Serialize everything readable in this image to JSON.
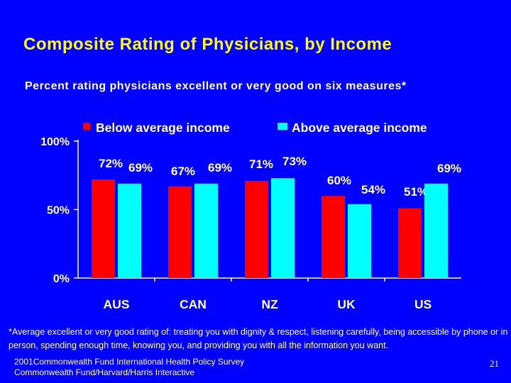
{
  "slide": {
    "title": "Composite Rating of Physicians, by Income",
    "subtitle": "Percent rating physicians excellent or very good on six measures*",
    "footnote": "*Average excellent or very good rating of:  treating you with dignity & respect, listening carefully, being accessible by phone or in person, spending enough time, knowing you, and providing you with all the information you want.",
    "source_line1": "2001Commonwealth Fund International Health Policy Survey",
    "source_line2": "Commonwealth Fund/Harvard/Harris Interactive",
    "page_number": "21"
  },
  "chart_data": {
    "type": "bar",
    "title": "Composite Rating of Physicians, by Income",
    "xlabel": "",
    "ylabel": "",
    "ylim": [
      0,
      100
    ],
    "yticks": [
      0,
      50,
      100
    ],
    "ytick_labels": [
      "0%",
      "50%",
      "100%"
    ],
    "grid": false,
    "legend_position": "top",
    "categories": [
      "AUS",
      "CAN",
      "NZ",
      "UK",
      "US"
    ],
    "series": [
      {
        "name": "Below average income",
        "color": "#FF0000",
        "values": [
          72,
          67,
          71,
          60,
          51
        ],
        "labels": [
          "72%",
          "67%",
          "71%",
          "60%",
          "51%"
        ]
      },
      {
        "name": "Above average income",
        "color": "#00FFFF",
        "values": [
          69,
          69,
          73,
          54,
          69
        ],
        "labels": [
          "69%",
          "69%",
          "73%",
          "54%",
          "69%"
        ]
      }
    ]
  }
}
